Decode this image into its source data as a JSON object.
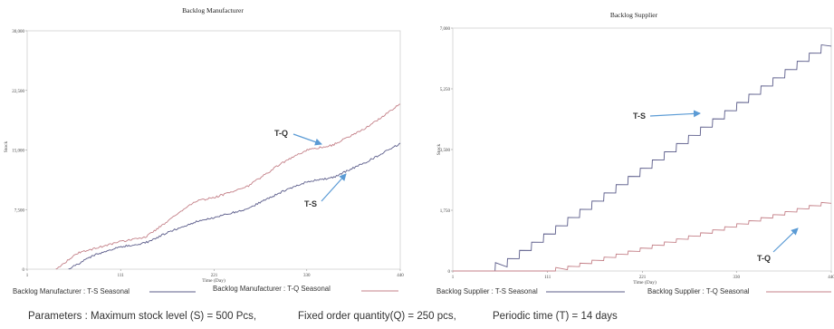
{
  "parameters": {
    "s_text": "Parameters : Maximum  stock level  (S) = 500 Pcs,",
    "q_text": "Fixed order quantity(Q)  = 250 pcs,",
    "t_text": "Periodic time  (T) = 14 days"
  },
  "colors": {
    "ts": "#5b5c8a",
    "tq": "#c48088",
    "annotation_arrow": "#5b9bd5"
  },
  "chart_data": [
    {
      "type": "line",
      "title": "Backlog Manufacturer",
      "xlabel": "Time (Day)",
      "ylabel": "Stock",
      "xlim": [
        1,
        440
      ],
      "ylim": [
        0,
        30000
      ],
      "xticks": [
        1,
        111,
        221,
        330,
        440
      ],
      "xtick_labels": [
        "1",
        "111",
        "221",
        "330",
        "440"
      ],
      "yticks": [
        0,
        7500,
        15000,
        22500,
        30000
      ],
      "ytick_labels": [
        "0",
        "7,500",
        "15,000",
        "22,500",
        "30,000"
      ],
      "grid": false,
      "legend_position": "bottom",
      "series": [
        {
          "name": "Backlog Manufacturer : T-S Seasonal",
          "color": "#5b5c8a",
          "x": [
            50,
            80,
            111,
            140,
            166,
            200,
            221,
            260,
            300,
            330,
            360,
            400,
            440
          ],
          "y": [
            0,
            1800,
            2800,
            3300,
            4600,
            6000,
            6500,
            7600,
            9700,
            11000,
            11500,
            13500,
            15800
          ]
        },
        {
          "name": "Backlog Manufacturer : T-Q Seasonal",
          "color": "#c48088",
          "x": [
            35,
            60,
            111,
            140,
            166,
            200,
            221,
            260,
            300,
            330,
            360,
            400,
            440
          ],
          "y": [
            0,
            2000,
            3500,
            4000,
            6000,
            8600,
            9000,
            10400,
            13300,
            15000,
            15600,
            17800,
            20800
          ]
        }
      ],
      "annotations": [
        {
          "text": "T-Q",
          "series": "Backlog Manufacturer : T-Q Seasonal"
        },
        {
          "text": "T-S",
          "series": "Backlog Manufacturer : T-S Seasonal"
        }
      ]
    },
    {
      "type": "line",
      "title": "Backlog Supplier",
      "xlabel": "Time (Day)",
      "ylabel": "Stock",
      "xlim": [
        1,
        440
      ],
      "ylim": [
        0,
        7000
      ],
      "xticks": [
        1,
        111,
        221,
        330,
        440
      ],
      "xtick_labels": [
        "1",
        "111",
        "221",
        "330",
        "440"
      ],
      "yticks": [
        0,
        1750,
        3500,
        5250,
        7000
      ],
      "ytick_labels": [
        "0",
        "1,750",
        "3,500",
        "5,250",
        "7,000"
      ],
      "grid": false,
      "legend_position": "bottom",
      "series": [
        {
          "name": "Backlog Supplier : T-S Seasonal",
          "color": "#5b5c8a",
          "x": [
            50,
            440
          ],
          "y": [
            0,
            6600
          ],
          "step_days": 14,
          "step_rise": 240
        },
        {
          "name": "Backlog Supplier : T-Q Seasonal",
          "color": "#c48088",
          "x": [
            120,
            440
          ],
          "y": [
            0,
            2000
          ],
          "step_days": 14,
          "step_rise": 100
        }
      ],
      "annotations": [
        {
          "text": "T-S",
          "series": "Backlog Supplier : T-S Seasonal"
        },
        {
          "text": "T-Q",
          "series": "Backlog Supplier : T-Q Seasonal"
        }
      ]
    }
  ]
}
